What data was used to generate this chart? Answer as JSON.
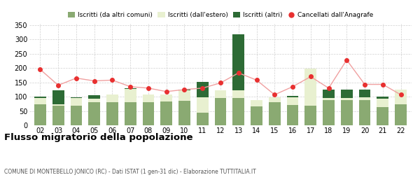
{
  "years": [
    "02",
    "03",
    "04",
    "05",
    "06",
    "07",
    "08",
    "09",
    "10",
    "11",
    "12",
    "13",
    "14",
    "15",
    "16",
    "17",
    "18",
    "19",
    "20",
    "21",
    "22"
  ],
  "iscritti_altri_comuni": [
    73,
    68,
    68,
    80,
    80,
    80,
    82,
    83,
    85,
    45,
    95,
    95,
    67,
    82,
    70,
    68,
    88,
    88,
    88,
    65,
    73
  ],
  "iscritti_estero": [
    22,
    5,
    28,
    12,
    28,
    48,
    25,
    25,
    38,
    52,
    28,
    28,
    22,
    15,
    28,
    130,
    8,
    8,
    10,
    28,
    52
  ],
  "iscritti_altri": [
    5,
    50,
    3,
    14,
    0,
    2,
    0,
    0,
    2,
    55,
    0,
    195,
    0,
    0,
    5,
    0,
    28,
    28,
    28,
    8,
    0
  ],
  "cancellati": [
    195,
    140,
    165,
    155,
    158,
    135,
    130,
    118,
    125,
    130,
    148,
    183,
    158,
    107,
    135,
    170,
    130,
    228,
    143,
    143,
    107
  ],
  "color_altri_comuni": "#8aaa72",
  "color_estero": "#e8f0d0",
  "color_altri": "#2d6b35",
  "color_cancellati": "#e83030",
  "color_cancellati_line": "#f0a0a0",
  "ylim": [
    0,
    355
  ],
  "yticks": [
    0,
    50,
    100,
    150,
    200,
    250,
    300,
    350
  ],
  "title": "Flusso migratorio della popolazione",
  "subtitle": "COMUNE DI MONTEBELLO JONICO (RC) - Dati ISTAT (1 gen-31 dic) - Elaborazione TUTTITALIA.IT",
  "legend_labels": [
    "Iscritti (da altri comuni)",
    "Iscritti (dall'estero)",
    "Iscritti (altri)",
    "Cancellati dall'Anagrafe"
  ],
  "background_color": "#ffffff",
  "grid_color": "#d0d0d0"
}
